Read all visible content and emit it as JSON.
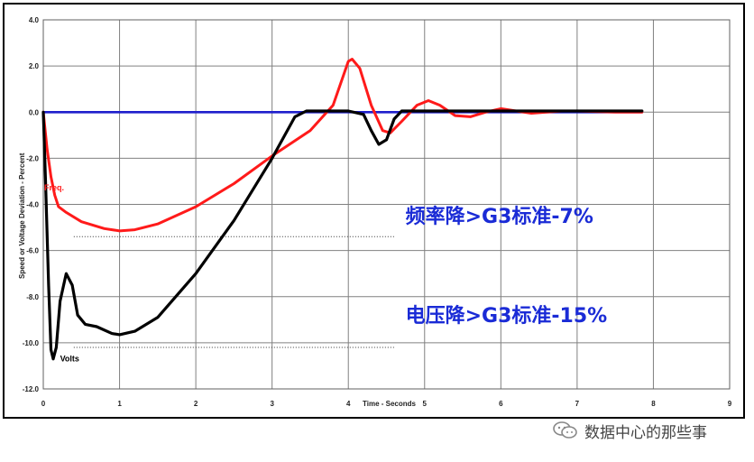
{
  "chart_data": {
    "type": "line",
    "title": "",
    "xlabel": "Time - Seconds",
    "ylabel": "Speed or Voltage Deviation - Percent",
    "xlim": [
      0,
      9
    ],
    "ylim": [
      -12.0,
      4.0
    ],
    "x_ticks": [
      "0",
      "1",
      "2",
      "3",
      "4",
      "5",
      "6",
      "7",
      "8",
      "9"
    ],
    "y_ticks": [
      "4.0",
      "2.0",
      "0.0",
      "-2.0",
      "-4.0",
      "-6.0",
      "-8.0",
      "-10.0",
      "-12.0"
    ],
    "grid": true,
    "series": [
      {
        "name": "Freq.",
        "color": "#ff1a1a",
        "points": [
          [
            0,
            0
          ],
          [
            0.05,
            -1.6
          ],
          [
            0.1,
            -2.8
          ],
          [
            0.15,
            -3.6
          ],
          [
            0.2,
            -4.1
          ],
          [
            0.3,
            -4.35
          ],
          [
            0.5,
            -4.75
          ],
          [
            0.8,
            -5.05
          ],
          [
            1.0,
            -5.15
          ],
          [
            1.2,
            -5.1
          ],
          [
            1.5,
            -4.85
          ],
          [
            2.0,
            -4.1
          ],
          [
            2.5,
            -3.1
          ],
          [
            3.0,
            -1.9
          ],
          [
            3.5,
            -0.8
          ],
          [
            3.8,
            0.3
          ],
          [
            4.0,
            2.2
          ],
          [
            4.05,
            2.3
          ],
          [
            4.15,
            1.9
          ],
          [
            4.3,
            0.3
          ],
          [
            4.45,
            -0.8
          ],
          [
            4.55,
            -0.9
          ],
          [
            4.7,
            -0.4
          ],
          [
            4.9,
            0.3
          ],
          [
            5.05,
            0.5
          ],
          [
            5.2,
            0.3
          ],
          [
            5.4,
            -0.15
          ],
          [
            5.6,
            -0.2
          ],
          [
            5.8,
            0.0
          ],
          [
            6.0,
            0.15
          ],
          [
            6.2,
            0.05
          ],
          [
            6.4,
            -0.05
          ],
          [
            6.6,
            0.0
          ],
          [
            6.8,
            0.05
          ],
          [
            7.0,
            0.05
          ],
          [
            7.5,
            0.0
          ],
          [
            7.85,
            0.0
          ]
        ]
      },
      {
        "name": "Volts",
        "color": "#000000",
        "points": [
          [
            0,
            0
          ],
          [
            0.03,
            -3.0
          ],
          [
            0.07,
            -7.5
          ],
          [
            0.1,
            -10.3
          ],
          [
            0.13,
            -10.7
          ],
          [
            0.17,
            -10.2
          ],
          [
            0.22,
            -8.2
          ],
          [
            0.3,
            -7.0
          ],
          [
            0.38,
            -7.5
          ],
          [
            0.45,
            -8.8
          ],
          [
            0.55,
            -9.2
          ],
          [
            0.7,
            -9.3
          ],
          [
            0.9,
            -9.6
          ],
          [
            1.0,
            -9.65
          ],
          [
            1.2,
            -9.5
          ],
          [
            1.5,
            -8.9
          ],
          [
            2.0,
            -7.0
          ],
          [
            2.5,
            -4.7
          ],
          [
            3.0,
            -2.0
          ],
          [
            3.3,
            -0.2
          ],
          [
            3.45,
            0.05
          ],
          [
            4.0,
            0.05
          ],
          [
            4.2,
            -0.1
          ],
          [
            4.3,
            -0.8
          ],
          [
            4.4,
            -1.4
          ],
          [
            4.5,
            -1.2
          ],
          [
            4.6,
            -0.3
          ],
          [
            4.7,
            0.05
          ],
          [
            5.0,
            0.05
          ],
          [
            7.85,
            0.05
          ]
        ]
      },
      {
        "name": "",
        "color": "#1f1fcc",
        "points": [
          [
            0,
            0
          ],
          [
            7.85,
            0
          ]
        ]
      }
    ],
    "series_labels": {
      "freq": "Freq.",
      "volts": "Volts"
    },
    "reference_lines": [
      {
        "x": [
          0.4,
          4.6
        ],
        "y": -5.4
      },
      {
        "x": [
          0.4,
          4.6
        ],
        "y": -10.2
      }
    ],
    "annotations": [
      {
        "text": "频率降>G3标准-7%",
        "color": "#1a2bd6"
      },
      {
        "text": "电压降>G3标准-15%",
        "color": "#1a2bd6"
      }
    ]
  },
  "watermark": {
    "text": "数据中心的那些事",
    "icon": "wechat-icon"
  }
}
